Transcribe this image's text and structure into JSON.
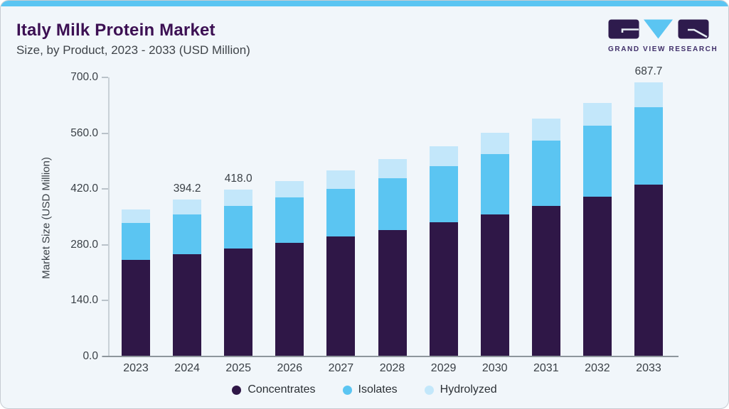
{
  "page": {
    "background": "#f1f6fa",
    "accent_bar_color": "#5bc5f2"
  },
  "header": {
    "title": "Italy Milk Protein Market",
    "subtitle": "Size, by Product, 2023 - 2033 (USD Million)"
  },
  "logo": {
    "text": "GRAND VIEW RESEARCH",
    "purple": "#2e1b4d",
    "blue": "#5bc5f2"
  },
  "chart_data": {
    "type": "bar",
    "stacked": true,
    "title": "Italy Milk Protein Market",
    "subtitle": "Size, by Product, 2023 - 2033 (USD Million)",
    "xlabel": "",
    "ylabel": "Market Size (USD Million)",
    "ylim": [
      0,
      700
    ],
    "yticks": [
      0,
      140,
      280,
      420,
      560,
      700
    ],
    "ytick_labels": [
      "0.0",
      "140.0",
      "280.0",
      "420.0",
      "560.0",
      "700.0"
    ],
    "grid": false,
    "legend_position": "bottom",
    "categories": [
      "2023",
      "2024",
      "2025",
      "2026",
      "2027",
      "2028",
      "2029",
      "2030",
      "2031",
      "2032",
      "2033"
    ],
    "series": [
      {
        "name": "Concentrates",
        "color": "#2f1747",
        "values": [
          243.0,
          257.0,
          271.5,
          284.7,
          301.5,
          317.6,
          336.0,
          356.2,
          377.1,
          400.9,
          430.2
        ]
      },
      {
        "name": "Isolates",
        "color": "#5bc5f2",
        "values": [
          91.0,
          98.7,
          106.3,
          113.8,
          119.5,
          130.0,
          141.0,
          151.0,
          164.0,
          177.5,
          194.2
        ]
      },
      {
        "name": "Hydrolyzed",
        "color": "#c3e7fa",
        "values": [
          34.5,
          38.5,
          40.2,
          42.0,
          45.5,
          47.0,
          49.5,
          54.0,
          56.0,
          58.0,
          63.3
        ]
      }
    ],
    "bar_value_labels": [
      null,
      "394.2",
      "418.0",
      null,
      null,
      null,
      null,
      null,
      null,
      null,
      "687.7"
    ]
  }
}
